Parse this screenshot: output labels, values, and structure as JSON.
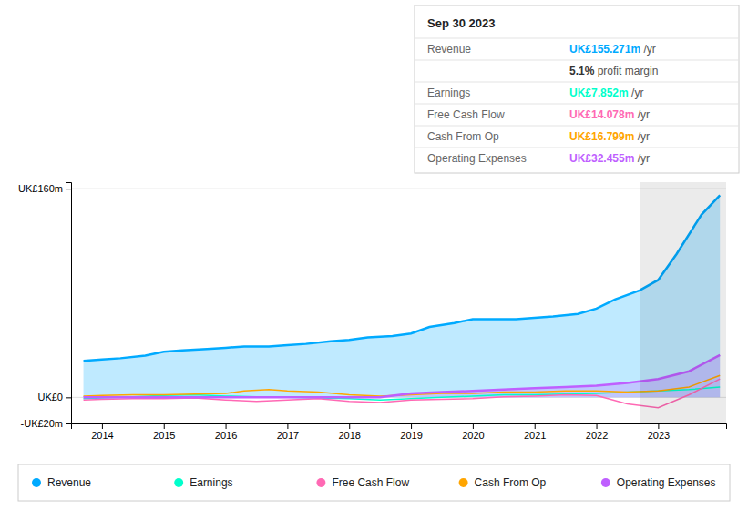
{
  "chart_data": {
    "type": "line",
    "xlim": [
      2013.5,
      2024.1
    ],
    "ylim": [
      -20,
      165
    ],
    "xticks": [
      2014,
      2015,
      2016,
      2017,
      2018,
      2019,
      2020,
      2021,
      2022,
      2023
    ],
    "yticks": [
      {
        "value": -20,
        "label": "-UK£20m"
      },
      {
        "value": 0,
        "label": "UK£0"
      },
      {
        "value": 160,
        "label": "UK£160m"
      }
    ],
    "grid": true,
    "highlight_range": [
      2022.7,
      2024.1
    ],
    "series": [
      {
        "name": "Revenue",
        "type": "area",
        "color": "#00aaff",
        "x": [
          2013.7,
          2014.0,
          2014.3,
          2014.7,
          2015.0,
          2015.3,
          2015.7,
          2016.0,
          2016.3,
          2016.7,
          2017.0,
          2017.3,
          2017.7,
          2018.0,
          2018.3,
          2018.7,
          2019.0,
          2019.3,
          2019.7,
          2020.0,
          2020.3,
          2020.7,
          2021.0,
          2021.3,
          2021.7,
          2022.0,
          2022.3,
          2022.7,
          2023.0,
          2023.3,
          2023.7,
          2024.0
        ],
        "values": [
          28,
          29,
          30,
          32,
          35,
          36,
          37,
          38,
          39,
          39,
          40,
          41,
          43,
          44,
          46,
          47,
          49,
          54,
          57,
          60,
          60,
          60,
          61,
          62,
          64,
          68,
          75,
          82,
          90,
          110,
          140,
          155
        ]
      },
      {
        "name": "Earnings",
        "type": "line",
        "color": "#00ffcc",
        "x": [
          2013.7,
          2014.0,
          2014.5,
          2015.0,
          2015.5,
          2016.0,
          2016.5,
          2017.0,
          2017.5,
          2018.0,
          2018.5,
          2019.0,
          2019.5,
          2020.0,
          2020.5,
          2021.0,
          2021.5,
          2022.0,
          2022.5,
          2023.0,
          2023.5,
          2024.0
        ],
        "values": [
          -1,
          -0.5,
          0.5,
          1.5,
          2,
          1,
          0.5,
          0,
          -0.5,
          -1,
          -2,
          -1,
          0,
          1,
          2,
          2,
          2.5,
          3,
          4,
          5,
          6,
          7.852
        ]
      },
      {
        "name": "Free Cash Flow",
        "type": "line",
        "color": "#ff69b4",
        "x": [
          2013.7,
          2014.0,
          2014.5,
          2015.0,
          2015.5,
          2016.0,
          2016.5,
          2017.0,
          2017.5,
          2018.0,
          2018.5,
          2019.0,
          2019.5,
          2020.0,
          2020.5,
          2021.0,
          2021.5,
          2022.0,
          2022.5,
          2023.0,
          2023.5,
          2024.0
        ],
        "values": [
          -2,
          -1.5,
          -1,
          -1,
          -0.5,
          -2,
          -3,
          -2,
          -1,
          -3,
          -4,
          -2,
          -1.5,
          -1,
          0.5,
          1,
          2,
          1.5,
          -5,
          -8,
          2,
          14.078
        ]
      },
      {
        "name": "Cash From Op",
        "type": "line",
        "color": "#ffa500",
        "x": [
          2013.7,
          2014.0,
          2014.5,
          2015.0,
          2015.5,
          2016.0,
          2016.3,
          2016.7,
          2017.0,
          2017.5,
          2018.0,
          2018.5,
          2019.0,
          2019.5,
          2020.0,
          2020.5,
          2021.0,
          2021.5,
          2022.0,
          2022.5,
          2023.0,
          2023.5,
          2024.0
        ],
        "values": [
          1,
          1.5,
          2,
          2,
          2.5,
          3,
          5,
          6,
          5,
          4,
          2,
          1,
          2,
          3,
          3,
          4,
          4,
          5,
          5,
          4,
          5,
          8,
          16.799
        ]
      },
      {
        "name": "Operating Expenses",
        "type": "area",
        "color": "#bf5fff",
        "x": [
          2013.7,
          2014.0,
          2014.5,
          2015.0,
          2015.5,
          2016.0,
          2016.5,
          2017.0,
          2017.5,
          2018.0,
          2018.5,
          2019.0,
          2019.5,
          2020.0,
          2020.5,
          2021.0,
          2021.5,
          2022.0,
          2022.5,
          2023.0,
          2023.5,
          2024.0
        ],
        "values": [
          0,
          0,
          0,
          0,
          0,
          0,
          0,
          0,
          0,
          0,
          0,
          3,
          4,
          5,
          6,
          7,
          8,
          9,
          11,
          14,
          20,
          32.455
        ]
      }
    ],
    "annotations": [
      {
        "title": "Sep 30 2023",
        "rows": [
          {
            "label": "Revenue",
            "value": "UK£155.271m",
            "suffix": " /yr",
            "color": "#00aaff"
          },
          {
            "value": "5.1%",
            "suffix": " profit margin",
            "color": "#333333"
          },
          {
            "label": "Earnings",
            "value": "UK£7.852m",
            "suffix": " /yr",
            "color": "#00ffcc"
          },
          {
            "label": "Free Cash Flow",
            "value": "UK£14.078m",
            "suffix": " /yr",
            "color": "#ff69b4"
          },
          {
            "label": "Cash From Op",
            "value": "UK£16.799m",
            "suffix": " /yr",
            "color": "#ffa500"
          },
          {
            "label": "Operating Expenses",
            "value": "UK£32.455m",
            "suffix": " /yr",
            "color": "#bf5fff"
          }
        ]
      }
    ]
  }
}
